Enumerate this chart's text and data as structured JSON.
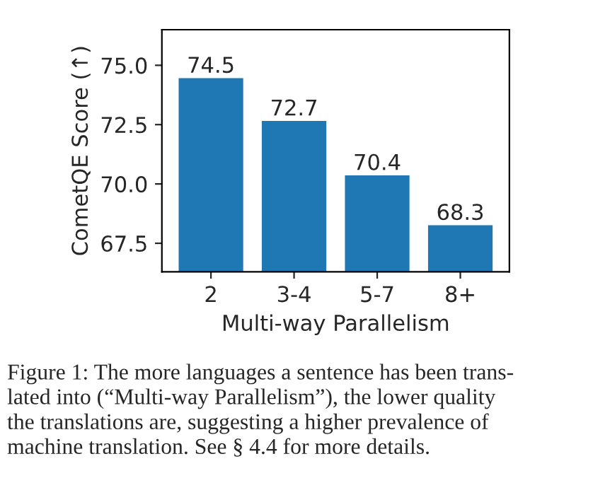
{
  "chart_data": {
    "type": "bar",
    "xlabel": "Multi-way Parallelism",
    "ylabel": "CometQE Score (↑)",
    "categories": [
      "2",
      "3-4",
      "5-7",
      "8+"
    ],
    "series": [
      {
        "color": "#1f77b4",
        "values": [
          74.5,
          72.7,
          70.4,
          68.3
        ]
      }
    ],
    "ylim": [
      66.3,
      76.5
    ],
    "yticks": [
      {
        "value": 67.5,
        "label": "67.5"
      },
      {
        "value": 70.0,
        "label": "70.0"
      },
      {
        "value": 72.5,
        "label": "72.5"
      },
      {
        "value": 75.0,
        "label": "75.0"
      }
    ],
    "data_labels": true,
    "grid": false,
    "legend": false,
    "annotations": [
      "Figure 1: The more languages a sentence has been trans-\nlated into (“Multi-way Parallelism”), the lower quality\nthe translations are, suggesting a higher prevalence of\nmachine translation. See § 4.4 for more details."
    ]
  }
}
